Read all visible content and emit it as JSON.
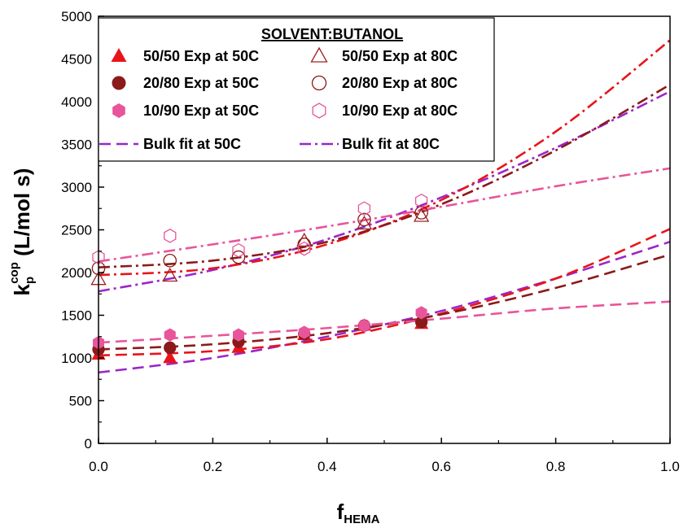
{
  "chart_data": {
    "type": "scatter",
    "xlabel": "f",
    "xlabel_sub": "HEMA",
    "ylabel": "k",
    "ylabel_sup": "cop",
    "ylabel_sub": "p",
    "ylabel_unit": " (L/mol s)",
    "xlim": [
      0.0,
      1.0
    ],
    "ylim": [
      0,
      5000
    ],
    "x_ticks": [
      "0.0",
      "0.2",
      "0.4",
      "0.6",
      "0.8",
      "1.0"
    ],
    "y_ticks": [
      "0",
      "500",
      "1000",
      "1500",
      "2000",
      "2500",
      "3000",
      "3500",
      "4000",
      "4500",
      "5000"
    ],
    "grid": false,
    "legend_position": "top",
    "legend_title": "SOLVENT:BUTANOL",
    "colors": {
      "s50_50": "#e8141b",
      "s20_80": "#8b1a1a",
      "s10_90": "#e8559b",
      "bulk": "#9b26c9"
    },
    "series": [
      {
        "name": "50/50 Exp at 50C",
        "marker": "triangle-filled",
        "color": "#e8141b",
        "points": [
          [
            0.0,
            1040
          ],
          [
            0.125,
            1000
          ],
          [
            0.245,
            1120
          ],
          [
            0.36,
            1270
          ],
          [
            0.465,
            1380
          ],
          [
            0.565,
            1400
          ]
        ]
      },
      {
        "name": "20/80 Exp at 50C",
        "marker": "circle-filled",
        "color": "#8b1a1a",
        "points": [
          [
            0.0,
            1100
          ],
          [
            0.125,
            1120
          ],
          [
            0.245,
            1190
          ],
          [
            0.36,
            1280
          ],
          [
            0.465,
            1380
          ],
          [
            0.565,
            1420
          ]
        ]
      },
      {
        "name": "10/90 Exp at 50C",
        "marker": "hexagon-filled",
        "color": "#e8559b",
        "points": [
          [
            0.0,
            1180
          ],
          [
            0.125,
            1270
          ],
          [
            0.245,
            1270
          ],
          [
            0.36,
            1300
          ],
          [
            0.465,
            1380
          ],
          [
            0.565,
            1530
          ]
        ]
      },
      {
        "name": "50/50 Exp at 80C",
        "marker": "triangle-open",
        "color": "#a02020",
        "points": [
          [
            0.0,
            1920
          ],
          [
            0.125,
            1960
          ],
          [
            0.36,
            2370
          ],
          [
            0.465,
            2570
          ],
          [
            0.565,
            2660
          ]
        ]
      },
      {
        "name": "20/80 Exp at 80C",
        "marker": "circle-open",
        "color": "#8b1a1a",
        "points": [
          [
            0.0,
            2050
          ],
          [
            0.125,
            2140
          ],
          [
            0.245,
            2180
          ],
          [
            0.36,
            2330
          ],
          [
            0.465,
            2620
          ],
          [
            0.565,
            2700
          ]
        ]
      },
      {
        "name": "10/90 Exp at 80C",
        "marker": "hexagon-open",
        "color": "#e8559b",
        "points": [
          [
            0.0,
            2180
          ],
          [
            0.125,
            2430
          ],
          [
            0.245,
            2260
          ],
          [
            0.36,
            2280
          ],
          [
            0.465,
            2750
          ],
          [
            0.565,
            2840
          ]
        ]
      }
    ],
    "fit_lines": [
      {
        "name": "Bulk fit at 50C",
        "style": "dash",
        "color": "#9b26c9",
        "points": [
          [
            0.0,
            830
          ],
          [
            0.2,
            1000
          ],
          [
            0.4,
            1250
          ],
          [
            0.6,
            1550
          ],
          [
            0.8,
            1930
          ],
          [
            1.0,
            2360
          ]
        ]
      },
      {
        "name": "Bulk fit at 80C",
        "style": "dashdot",
        "color": "#9b26c9",
        "points": [
          [
            0.0,
            1780
          ],
          [
            0.2,
            2030
          ],
          [
            0.4,
            2390
          ],
          [
            0.6,
            2880
          ],
          [
            0.8,
            3460
          ],
          [
            1.0,
            4120
          ]
        ]
      },
      {
        "name": "",
        "style": "dash",
        "color": "#e8141b",
        "points": [
          [
            0.0,
            1030
          ],
          [
            0.2,
            1080
          ],
          [
            0.4,
            1220
          ],
          [
            0.6,
            1520
          ],
          [
            0.8,
            1930
          ],
          [
            1.0,
            2510
          ]
        ]
      },
      {
        "name": "",
        "style": "dash",
        "color": "#8b1a1a",
        "points": [
          [
            0.0,
            1100
          ],
          [
            0.2,
            1160
          ],
          [
            0.4,
            1290
          ],
          [
            0.6,
            1510
          ],
          [
            0.8,
            1820
          ],
          [
            1.0,
            2210
          ]
        ]
      },
      {
        "name": "",
        "style": "dash",
        "color": "#e8559b",
        "points": [
          [
            0.0,
            1180
          ],
          [
            0.2,
            1260
          ],
          [
            0.4,
            1350
          ],
          [
            0.6,
            1460
          ],
          [
            0.8,
            1580
          ],
          [
            1.0,
            1660
          ]
        ]
      },
      {
        "name": "",
        "style": "dashdot",
        "color": "#e8141b",
        "points": [
          [
            0.0,
            1970
          ],
          [
            0.2,
            2050
          ],
          [
            0.4,
            2330
          ],
          [
            0.6,
            2850
          ],
          [
            0.8,
            3650
          ],
          [
            1.0,
            4720
          ]
        ]
      },
      {
        "name": "",
        "style": "dashdot",
        "color": "#8b1a1a",
        "points": [
          [
            0.0,
            2060
          ],
          [
            0.2,
            2140
          ],
          [
            0.4,
            2360
          ],
          [
            0.6,
            2800
          ],
          [
            0.8,
            3430
          ],
          [
            1.0,
            4200
          ]
        ]
      },
      {
        "name": "",
        "style": "dashdot",
        "color": "#e8559b",
        "points": [
          [
            0.0,
            2130
          ],
          [
            0.2,
            2330
          ],
          [
            0.4,
            2540
          ],
          [
            0.6,
            2770
          ],
          [
            0.8,
            3010
          ],
          [
            1.0,
            3220
          ]
        ]
      }
    ]
  }
}
